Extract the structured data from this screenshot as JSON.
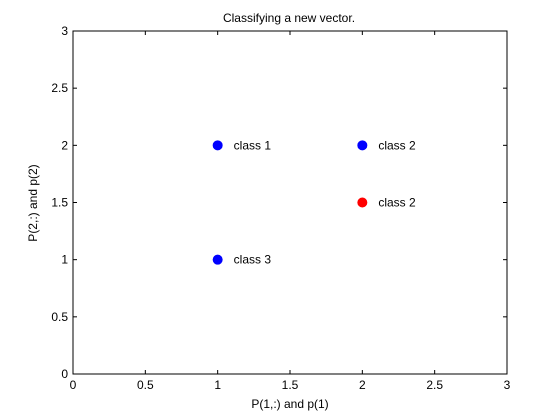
{
  "chart_data": {
    "type": "scatter",
    "title": "Classifying a new vector.",
    "xlabel": "P(1,:) and p(1)",
    "ylabel": "P(2,:) and p(2)",
    "xlim": [
      0,
      3
    ],
    "ylim": [
      0,
      3
    ],
    "x_ticks": [
      0,
      0.5,
      1,
      1.5,
      2,
      2.5,
      3
    ],
    "x_tick_labels": [
      "0",
      "0.5",
      "1",
      "1.5",
      "2",
      "2.5",
      "3"
    ],
    "y_ticks": [
      0,
      0.5,
      1,
      1.5,
      2,
      2.5,
      3
    ],
    "y_tick_labels": [
      "0",
      "0.5",
      "1",
      "1.5",
      "2",
      "2.5",
      "3"
    ],
    "grid": false,
    "points": [
      {
        "x": 1,
        "y": 2,
        "label": "class 1",
        "color": "#0000ff"
      },
      {
        "x": 2,
        "y": 2,
        "label": "class 2",
        "color": "#0000ff"
      },
      {
        "x": 2,
        "y": 1.5,
        "label": "class 2",
        "color": "#ff0000"
      },
      {
        "x": 1,
        "y": 1,
        "label": "class 3",
        "color": "#0000ff"
      }
    ]
  }
}
